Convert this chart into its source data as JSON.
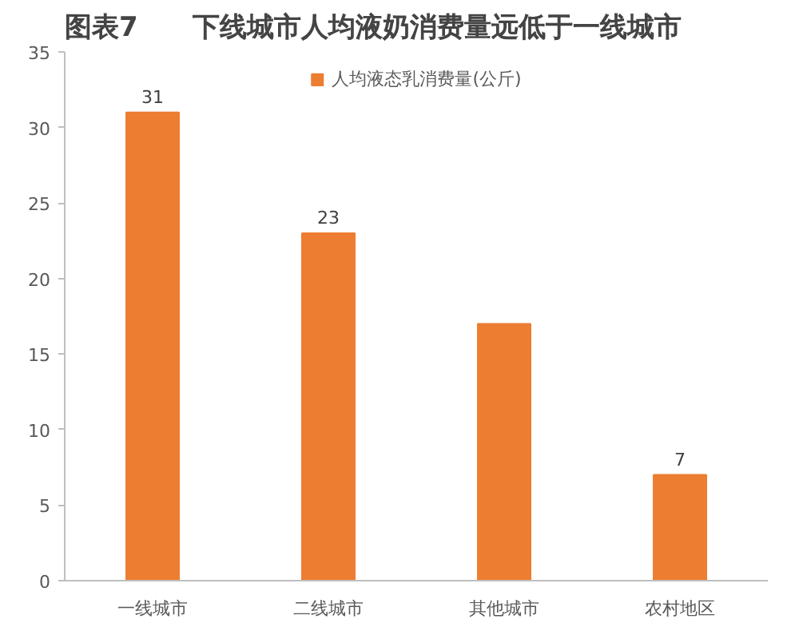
{
  "chart_data": {
    "type": "bar",
    "title": "图表7　　下线城市人均液奶消费量远低于一线城市",
    "categories": [
      "一线城市",
      "二线城市",
      "其他城市",
      "农村地区"
    ],
    "series": [
      {
        "name": "人均液态乳消费量(公斤)",
        "color": "#ed7d31",
        "values": [
          31,
          23,
          17,
          7
        ]
      }
    ],
    "value_labels": [
      "31",
      "23",
      null,
      "7"
    ],
    "ylim": [
      0,
      35
    ],
    "yticks": [
      0,
      5,
      10,
      15,
      20,
      25,
      30,
      35
    ],
    "grid": false,
    "legend": "top"
  }
}
